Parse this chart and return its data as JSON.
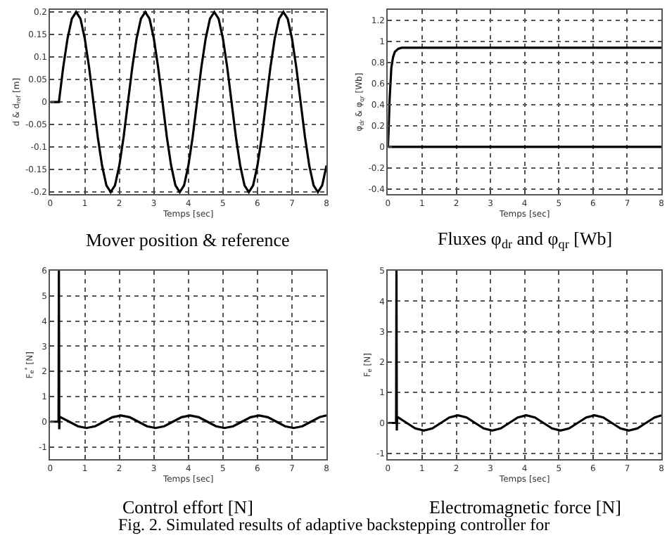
{
  "chart_data": [
    {
      "type": "line",
      "title": "Mover position & reference",
      "xlabel": "Temps [sec]",
      "ylabel": "d & d$_{ref}$ [m]",
      "xlim": [
        0,
        8
      ],
      "xticks": [
        0,
        1,
        2,
        3,
        4,
        5,
        6,
        7,
        8
      ],
      "ylim": [
        -0.205,
        0.205
      ],
      "yticks": [
        -0.2,
        -0.15,
        -0.1,
        -0.05,
        0,
        0.05,
        0.1,
        0.15,
        0.2
      ],
      "grid": true,
      "series": [
        {
          "color": "#000000",
          "x": [
            0,
            0.25,
            0.375,
            0.5,
            0.625,
            0.75,
            0.875,
            1.0,
            1.125,
            1.25,
            1.375,
            1.5,
            1.625,
            1.75,
            1.875,
            2.0,
            2.125,
            2.25,
            2.375,
            2.5,
            2.625,
            2.75,
            2.875,
            3.0,
            3.125,
            3.25,
            3.375,
            3.5,
            3.625,
            3.75,
            3.875,
            4.0,
            4.125,
            4.25,
            4.375,
            4.5,
            4.625,
            4.75,
            4.875,
            5.0,
            5.125,
            5.25,
            5.375,
            5.5,
            5.625,
            5.75,
            5.875,
            6.0,
            6.125,
            6.25,
            6.375,
            6.5,
            6.625,
            6.75,
            6.875,
            7.0,
            7.125,
            7.25,
            7.375,
            7.5,
            7.625,
            7.75,
            7.875,
            8.0
          ],
          "values": [
            0,
            0,
            0.077,
            0.141,
            0.185,
            0.2,
            0.185,
            0.141,
            0.077,
            0,
            -0.077,
            -0.141,
            -0.185,
            -0.2,
            -0.185,
            -0.141,
            -0.077,
            0,
            0.077,
            0.141,
            0.185,
            0.2,
            0.185,
            0.141,
            0.077,
            0,
            -0.077,
            -0.141,
            -0.185,
            -0.2,
            -0.185,
            -0.141,
            -0.077,
            0,
            0.077,
            0.141,
            0.185,
            0.2,
            0.185,
            0.141,
            0.077,
            0,
            -0.077,
            -0.141,
            -0.185,
            -0.2,
            -0.185,
            -0.141,
            -0.077,
            0,
            0.077,
            0.141,
            0.185,
            0.2,
            0.185,
            0.141,
            0.077,
            0,
            -0.077,
            -0.141,
            -0.185,
            -0.2,
            -0.185,
            -0.141
          ]
        }
      ]
    },
    {
      "type": "line",
      "title": "Fluxes φ$_{dr}$ and φ$_{qr}$ [Wb]",
      "xlabel": "Temps [sec]",
      "ylabel": "φ$_{dr}$ & φ$_{qr}$ [Wb]",
      "xlim": [
        0,
        8
      ],
      "xticks": [
        0,
        1,
        2,
        3,
        4,
        5,
        6,
        7,
        8
      ],
      "ylim": [
        -0.45,
        1.3
      ],
      "yticks": [
        -0.4,
        -0.2,
        0,
        0.2,
        0.4,
        0.6,
        0.8,
        1,
        1.2
      ],
      "grid": true,
      "series": [
        {
          "color": "#000000",
          "x": [
            0,
            0.02,
            0.05,
            0.1,
            0.15,
            0.2,
            0.3,
            0.4,
            8
          ],
          "values": [
            0,
            0.15,
            0.45,
            0.75,
            0.85,
            0.9,
            0.93,
            0.94,
            0.94
          ]
        },
        {
          "color": "#000000",
          "x": [
            0,
            8
          ],
          "values": [
            0,
            0
          ]
        }
      ]
    },
    {
      "type": "line",
      "title": "Control effort [N]",
      "xlabel": "Temps [sec]",
      "ylabel": "F$_{e}$$^{*}$ [N]",
      "xlim": [
        0,
        8
      ],
      "xticks": [
        0,
        1,
        2,
        3,
        4,
        5,
        6,
        7,
        8
      ],
      "ylim": [
        -1.5,
        6
      ],
      "yticks": [
        -1,
        0,
        1,
        2,
        3,
        4,
        5,
        6
      ],
      "grid": true,
      "series": [
        {
          "color": "#000000",
          "x": [
            0,
            0.24,
            0.25,
            0.26,
            0.27,
            0.3,
            0.55,
            0.8,
            1.05,
            1.3,
            1.55,
            1.8,
            2.05,
            2.3,
            2.55,
            2.8,
            3.05,
            3.3,
            3.55,
            3.8,
            4.05,
            4.3,
            4.55,
            4.8,
            5.05,
            5.3,
            5.55,
            5.8,
            6.05,
            6.3,
            6.55,
            6.8,
            7.05,
            7.3,
            7.55,
            7.8,
            8.0
          ],
          "values": [
            0,
            0,
            6,
            -0.3,
            0.2,
            0.18,
            0,
            -0.18,
            -0.25,
            -0.18,
            0,
            0.18,
            0.25,
            0.18,
            0,
            -0.18,
            -0.25,
            -0.18,
            0,
            0.18,
            0.25,
            0.18,
            0,
            -0.18,
            -0.25,
            -0.18,
            0,
            0.18,
            0.25,
            0.18,
            0,
            -0.18,
            -0.25,
            -0.18,
            0,
            0.18,
            0.25
          ]
        }
      ]
    },
    {
      "type": "line",
      "title": "Electromagnetic force [N]",
      "xlabel": "Temps [sec]",
      "ylabel": "F$_{e}$ [N]",
      "xlim": [
        0,
        8
      ],
      "xticks": [
        0,
        1,
        2,
        3,
        4,
        5,
        6,
        7,
        8
      ],
      "ylim": [
        -1.2,
        5
      ],
      "yticks": [
        -1,
        0,
        1,
        2,
        3,
        4,
        5
      ],
      "grid": true,
      "annotations": [
        "Fig. 2. Simulated results of adaptive backstepping controller for"
      ],
      "series": [
        {
          "color": "#000000",
          "x": [
            0,
            0.24,
            0.25,
            0.26,
            0.27,
            0.3,
            0.55,
            0.8,
            1.05,
            1.3,
            1.55,
            1.8,
            2.05,
            2.3,
            2.55,
            2.8,
            3.05,
            3.3,
            3.55,
            3.8,
            4.05,
            4.3,
            4.55,
            4.8,
            5.05,
            5.3,
            5.55,
            5.8,
            6.05,
            6.3,
            6.55,
            6.8,
            7.05,
            7.3,
            7.55,
            7.8,
            8.0
          ],
          "values": [
            0,
            0,
            5,
            -0.25,
            0.2,
            0.18,
            0,
            -0.18,
            -0.25,
            -0.18,
            0,
            0.18,
            0.25,
            0.18,
            0,
            -0.18,
            -0.25,
            -0.18,
            0,
            0.18,
            0.25,
            0.18,
            0,
            -0.18,
            -0.25,
            -0.18,
            0,
            0.18,
            0.25,
            0.18,
            0,
            -0.18,
            -0.25,
            -0.18,
            0,
            0.18,
            0.25
          ]
        }
      ]
    }
  ]
}
